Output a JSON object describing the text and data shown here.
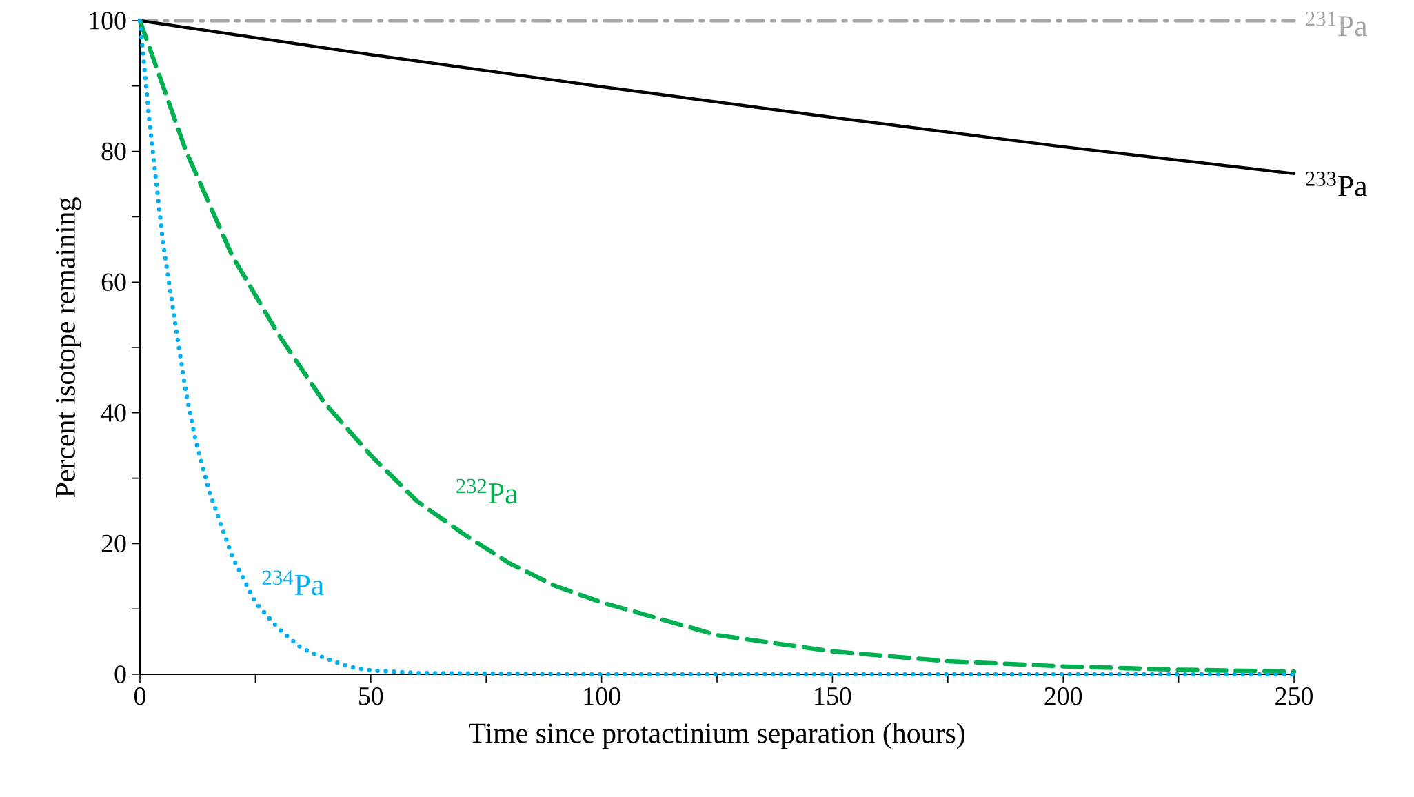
{
  "chart_data": {
    "type": "line",
    "xlabel": "Time since protactinium separation (hours)",
    "ylabel": "Percent isotope remaining",
    "xlim": [
      0,
      250
    ],
    "ylim": [
      0,
      100
    ],
    "xticks": [
      0,
      {
        "value": 25,
        "label": null
      },
      50,
      {
        "value": 75,
        "label": null
      },
      100,
      {
        "value": 125,
        "label": null
      },
      150,
      {
        "value": 175,
        "label": null
      },
      200,
      {
        "value": 225,
        "label": null
      },
      250
    ],
    "yticks": [
      0,
      {
        "value": 10,
        "label": null
      },
      20,
      {
        "value": 30,
        "label": null
      },
      40,
      {
        "value": 50,
        "label": null
      },
      60,
      {
        "value": 70,
        "label": null
      },
      80,
      {
        "value": 90,
        "label": null
      },
      100
    ],
    "grid": false,
    "legend": false,
    "marker": "none",
    "series": [
      {
        "name": "$^{231}$Pa",
        "color": "#a6a6a6",
        "line_style": "dashdot",
        "x": [
          0,
          250
        ],
        "values": [
          100,
          100
        ]
      },
      {
        "name": "$^{233}$Pa",
        "color": "#000000",
        "line_style": "solid",
        "x": [
          0,
          50,
          100,
          150,
          200,
          250
        ],
        "values": [
          100,
          94.8,
          89.9,
          85.2,
          80.7,
          76.6
        ]
      },
      {
        "name": "$^{232}$Pa",
        "color": "#00b050",
        "line_style": "dashed",
        "x": [
          0,
          10,
          20,
          30,
          40,
          50,
          60,
          70,
          80,
          90,
          100,
          125,
          150,
          175,
          200,
          225,
          250
        ],
        "values": [
          100,
          80,
          64,
          52,
          41.5,
          33.5,
          26.5,
          21.5,
          17,
          13.5,
          11,
          6,
          3.5,
          2,
          1.2,
          0.7,
          0.4
        ]
      },
      {
        "name": "$^{234}$Pa",
        "color": "#00b0f0",
        "line_style": "dotted",
        "x": [
          0,
          2,
          5,
          8,
          10,
          12,
          15,
          20,
          25,
          30,
          35,
          40,
          45,
          50,
          60,
          75,
          100,
          250
        ],
        "values": [
          100,
          85,
          66,
          52,
          43,
          36,
          28,
          18,
          11,
          7,
          4,
          2.5,
          1.2,
          0.6,
          0.2,
          0.1,
          0,
          0
        ]
      }
    ]
  }
}
